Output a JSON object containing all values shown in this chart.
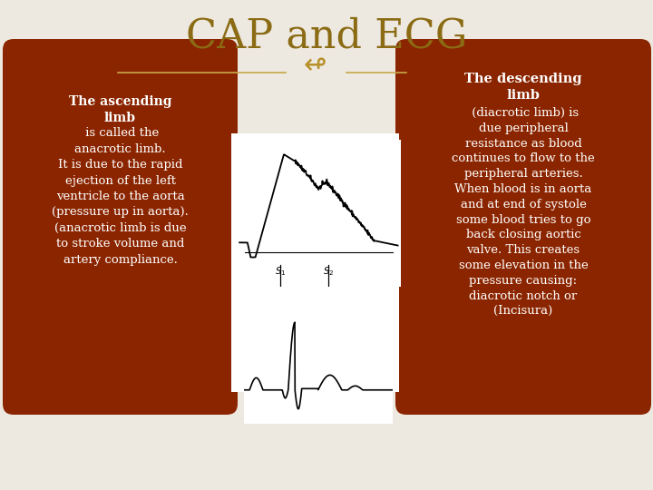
{
  "title": "CAP and ECG",
  "title_color": "#8B6B14",
  "title_fontsize": 32,
  "bg_color": "#EDE9E0",
  "box_color": "#8B2500",
  "box_text_color": "#FFFFFF",
  "left_bold": "The ascending\nlimb",
  "left_normal": " is called the\nanacrotic limb.\nIt is due to the rapid\nejection of the left\nventricle to the aorta\n(pressure up in aorta).\n(anacrotic limb is due\nto stroke volume and\nartery compliance.",
  "right_bold": "The descending\nlimb",
  "right_normal": " (diacrotic limb) is\ndue peripheral\nresistance as blood\ncontinues to flow to the\nperipheral arteries.\nWhen blood is in aorta\nand at end of systole\nsome blood tries to go\nback closing aortic\nvalve. This creates\nsome elevation in the\npressure causing:\ndiacrotic notch or\n(Incisura)",
  "symbol_color": "#B8902A",
  "line_color": "#C8A84B"
}
